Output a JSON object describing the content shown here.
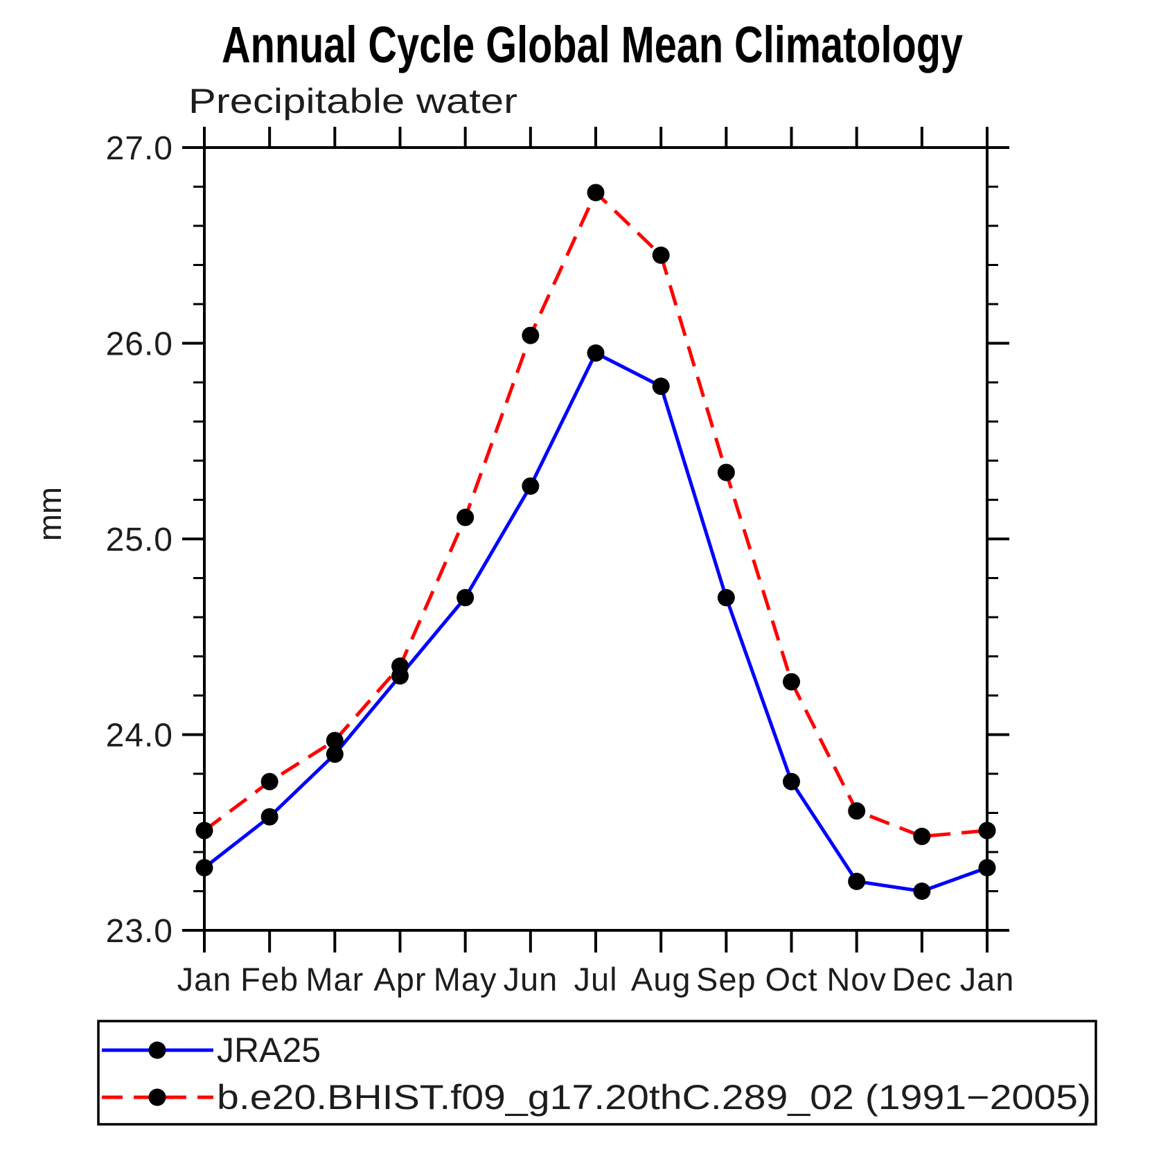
{
  "chart_data": {
    "type": "line",
    "title": "Annual Cycle Global Mean Climatology",
    "subtitle": "Precipitable water",
    "ylabel": "mm",
    "xlabel": "",
    "categories": [
      "Jan",
      "Feb",
      "Mar",
      "Apr",
      "May",
      "Jun",
      "Jul",
      "Aug",
      "Sep",
      "Oct",
      "Nov",
      "Dec",
      "Jan"
    ],
    "ylim": [
      23.0,
      27.0
    ],
    "ytick_major": [
      23.0,
      24.0,
      25.0,
      26.0,
      27.0
    ],
    "ytick_major_labels": [
      "23.0",
      "24.0",
      "25.0",
      "26.0",
      "27.0"
    ],
    "ytick_minor_step": 0.2,
    "grid": false,
    "legend_position": "boxed-below-plot",
    "series": [
      {
        "name": "JRA25",
        "color": "#0000ff",
        "line_style": "solid",
        "marker": "circle",
        "marker_color": "#000000",
        "values": [
          23.32,
          23.58,
          23.9,
          24.3,
          24.7,
          25.27,
          25.95,
          25.78,
          24.7,
          23.76,
          23.25,
          23.2,
          23.32
        ]
      },
      {
        "name": "b.e20.BHIST.f09_g17.20thC.289_02 (1991−2005)",
        "color": "#ff0000",
        "line_style": "dashed",
        "marker": "circle",
        "marker_color": "#000000",
        "values": [
          23.51,
          23.76,
          23.97,
          24.35,
          25.11,
          26.04,
          26.77,
          26.45,
          25.34,
          24.27,
          23.61,
          23.48,
          23.51
        ]
      }
    ]
  },
  "colors": {
    "frame": "#000000",
    "text": "#1d1d1d",
    "background": "#ffffff"
  }
}
